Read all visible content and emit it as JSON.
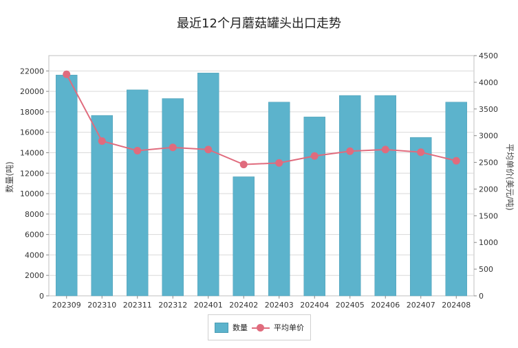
{
  "chart_data": {
    "type": "bar",
    "title": "最近12个月蘑菇罐头出口走势",
    "categories": [
      "202309",
      "202310",
      "202311",
      "202312",
      "202401",
      "202402",
      "202403",
      "202404",
      "202405",
      "202406",
      "202407",
      "202408"
    ],
    "series": [
      {
        "name": "数量",
        "type": "bar",
        "axis": "left",
        "values": [
          21600,
          17650,
          20150,
          19300,
          21800,
          11650,
          18950,
          17500,
          19600,
          19600,
          15500,
          18950
        ]
      },
      {
        "name": "平均单价",
        "type": "line",
        "axis": "right",
        "values": [
          4150,
          2900,
          2720,
          2780,
          2740,
          2460,
          2490,
          2620,
          2710,
          2740,
          2690,
          2530
        ]
      }
    ],
    "ylabel": "数量(吨)",
    "y2label": "平均单价(美元/吨)",
    "ylim": [
      0,
      23500
    ],
    "y2lim": [
      0,
      4500
    ],
    "yticks": [
      0,
      2000,
      4000,
      6000,
      8000,
      10000,
      12000,
      14000,
      16000,
      18000,
      20000,
      22000
    ],
    "y2ticks": [
      0,
      500,
      1000,
      1500,
      2000,
      2500,
      3000,
      3500,
      4000,
      4500
    ],
    "grid": true,
    "legend": "bottom",
    "colors": {
      "bar": "#5cb3cc",
      "bar_border": "#4a9cb3",
      "line": "#e06b7d",
      "grid": "#d9d9d9"
    }
  }
}
